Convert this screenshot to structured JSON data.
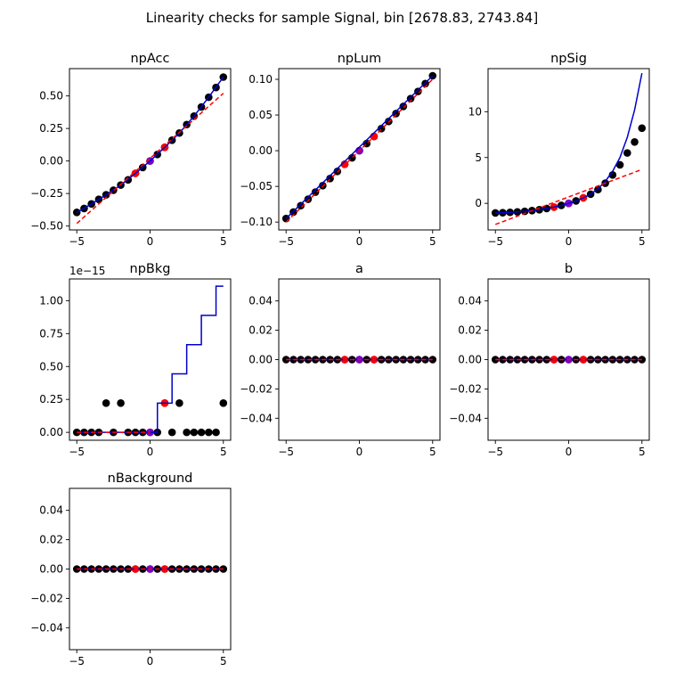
{
  "suptitle": "Linearity checks for sample Signal, bin [2678.83, 2743.84]",
  "colors": {
    "points": "#000000",
    "fit": "#0000cc",
    "linear": "#ff0000",
    "highlight_red": "#ff0000",
    "highlight_purple": "#7a00cc"
  },
  "chart_data": [
    {
      "type": "scatter",
      "title": "npAcc",
      "xlim": [
        -5.5,
        5.5
      ],
      "ylim": [
        -0.53,
        0.71
      ],
      "xticks": [
        -5,
        0,
        5
      ],
      "xtick_labels": [
        "−5",
        "0",
        "5"
      ],
      "yticks": [
        -0.5,
        -0.25,
        0,
        0.25,
        0.5
      ],
      "ytick_labels": [
        "−0.50",
        "−0.25",
        "0.00",
        "0.25",
        "0.50"
      ],
      "offset_label": "",
      "points_x": [
        -5,
        -4.5,
        -4,
        -3.5,
        -3,
        -2.5,
        -2,
        -1.5,
        -1,
        -0.5,
        0,
        0.5,
        1,
        1.5,
        2,
        2.5,
        3,
        3.5,
        4,
        4.5,
        5
      ],
      "points_y": [
        -0.395,
        -0.365,
        -0.33,
        -0.295,
        -0.26,
        -0.225,
        -0.185,
        -0.145,
        -0.095,
        -0.05,
        0.0,
        0.05,
        0.105,
        0.16,
        0.215,
        0.28,
        0.345,
        0.415,
        0.49,
        0.565,
        0.645
      ],
      "fit_curve": {
        "x": [
          -5,
          -4,
          -3,
          -2,
          -1,
          0,
          1,
          2,
          3,
          4,
          5
        ],
        "y": [
          -0.395,
          -0.33,
          -0.26,
          -0.185,
          -0.095,
          0.0,
          0.105,
          0.215,
          0.345,
          0.49,
          0.645
        ]
      },
      "linear_line": {
        "x": [
          -5,
          5
        ],
        "y": [
          -0.48,
          0.52
        ]
      },
      "red_points": [
        [
          -1,
          -0.095
        ],
        [
          1,
          0.105
        ]
      ],
      "purple_point": [
        0,
        0.0
      ]
    },
    {
      "type": "scatter",
      "title": "npLum",
      "xlim": [
        -5.5,
        5.5
      ],
      "ylim": [
        -0.111,
        0.115
      ],
      "xticks": [
        -5,
        0,
        5
      ],
      "xtick_labels": [
        "−5",
        "0",
        "5"
      ],
      "yticks": [
        -0.1,
        -0.05,
        0,
        0.05,
        0.1
      ],
      "ytick_labels": [
        "−0.10",
        "−0.05",
        "0.00",
        "0.05",
        "0.10"
      ],
      "offset_label": "",
      "points_x": [
        -5,
        -4.5,
        -4,
        -3.5,
        -3,
        -2.5,
        -2,
        -1.5,
        -1,
        -0.5,
        0,
        0.5,
        1,
        1.5,
        2,
        2.5,
        3,
        3.5,
        4,
        4.5,
        5
      ],
      "points_y": [
        -0.095,
        -0.086,
        -0.077,
        -0.068,
        -0.058,
        -0.049,
        -0.039,
        -0.029,
        -0.019,
        -0.01,
        0.0,
        0.01,
        0.02,
        0.031,
        0.041,
        0.052,
        0.062,
        0.073,
        0.083,
        0.094,
        0.105
      ],
      "fit_curve": {
        "x": [
          -5,
          5
        ],
        "y": [
          -0.095,
          0.105
        ]
      },
      "linear_line": {
        "x": [
          -5,
          5
        ],
        "y": [
          -0.1,
          0.1
        ]
      },
      "red_points": [
        [
          -1,
          -0.019
        ],
        [
          1,
          0.02
        ]
      ],
      "purple_point": [
        0,
        0.0
      ]
    },
    {
      "type": "scatter",
      "title": "npSig",
      "xlim": [
        -5.5,
        5.5
      ],
      "ylim": [
        -2.9,
        14.7
      ],
      "xticks": [
        -5,
        0,
        5
      ],
      "xtick_labels": [
        "−5",
        "0",
        "5"
      ],
      "yticks": [
        0,
        5,
        10
      ],
      "ytick_labels": [
        "0",
        "5",
        "10"
      ],
      "offset_label": "",
      "points_x": [
        -5,
        -4.5,
        -4,
        -3.5,
        -3,
        -2.5,
        -2,
        -1.5,
        -1,
        -0.5,
        0,
        0.5,
        1,
        1.5,
        2,
        2.5,
        3,
        3.5,
        4,
        4.5,
        5
      ],
      "points_y": [
        -1.05,
        -1.02,
        -0.98,
        -0.93,
        -0.87,
        -0.79,
        -0.69,
        -0.56,
        -0.41,
        -0.22,
        0.0,
        0.27,
        0.6,
        1.0,
        1.5,
        2.2,
        3.1,
        4.2,
        5.5,
        6.7,
        8.2
      ],
      "fit_curve": {
        "x": [
          -5,
          -4.5,
          -4,
          -3.5,
          -3,
          -2.5,
          -2,
          -1.5,
          -1,
          -0.5,
          0,
          0.5,
          1,
          1.5,
          2,
          2.5,
          3,
          3.5,
          4,
          4.5,
          5
        ],
        "y": [
          -1.05,
          -1.02,
          -0.98,
          -0.93,
          -0.87,
          -0.79,
          -0.69,
          -0.56,
          -0.41,
          -0.22,
          0.0,
          0.27,
          0.6,
          1.0,
          1.6,
          2.4,
          3.5,
          5.0,
          7.2,
          10.2,
          14.2
        ]
      },
      "linear_line": {
        "x": [
          -5,
          5
        ],
        "y": [
          -2.3,
          3.7
        ]
      },
      "red_points": [
        [
          -1,
          -0.41
        ],
        [
          1,
          0.6
        ]
      ],
      "purple_point": [
        0,
        0.0
      ]
    },
    {
      "type": "scatter",
      "title": "npBkg",
      "xlim": [
        -5.5,
        5.5
      ],
      "ylim": [
        -0.06,
        1.165
      ],
      "xticks": [
        -5,
        0,
        5
      ],
      "xtick_labels": [
        "−5",
        "0",
        "5"
      ],
      "yticks": [
        0,
        0.25,
        0.5,
        0.75,
        1.0
      ],
      "ytick_labels": [
        "0.00",
        "0.25",
        "0.50",
        "0.75",
        "1.00"
      ],
      "offset_label": "1e−15",
      "points_x": [
        -5,
        -4.5,
        -4,
        -3.5,
        -3,
        -2.5,
        -2,
        -1.5,
        -1,
        -0.5,
        0,
        0.5,
        1,
        1.5,
        2,
        2.5,
        3,
        3.5,
        4,
        4.5,
        5
      ],
      "points_y": [
        0,
        0,
        0,
        0,
        0.222,
        0,
        0.222,
        0,
        0,
        0,
        0,
        0,
        0.222,
        0,
        0.222,
        0,
        0,
        0,
        0,
        0,
        0.222
      ],
      "fit_curve": {
        "x": [
          -5,
          0.5,
          0.5,
          1.5,
          1.5,
          2.5,
          2.5,
          3.5,
          3.5,
          4.5,
          4.5,
          5
        ],
        "y": [
          0,
          0,
          0.222,
          0.222,
          0.444,
          0.444,
          0.666,
          0.666,
          0.888,
          0.888,
          1.11,
          1.11
        ]
      },
      "linear_line": {
        "x": [
          -5,
          0
        ],
        "y": [
          0,
          0
        ]
      },
      "red_points": [
        [
          1,
          0.222
        ]
      ],
      "purple_point": [
        0,
        0.0
      ]
    },
    {
      "type": "scatter",
      "title": "a",
      "xlim": [
        -5.5,
        5.5
      ],
      "ylim": [
        -0.055,
        0.055
      ],
      "xticks": [
        -5,
        0,
        5
      ],
      "xtick_labels": [
        "−5",
        "0",
        "5"
      ],
      "yticks": [
        -0.04,
        -0.02,
        0,
        0.02,
        0.04
      ],
      "ytick_labels": [
        "−0.04",
        "−0.02",
        "0.00",
        "0.02",
        "0.04"
      ],
      "offset_label": "",
      "points_x": [
        -5,
        -4.5,
        -4,
        -3.5,
        -3,
        -2.5,
        -2,
        -1.5,
        -1,
        -0.5,
        0,
        0.5,
        1,
        1.5,
        2,
        2.5,
        3,
        3.5,
        4,
        4.5,
        5
      ],
      "points_y": [
        0,
        0,
        0,
        0,
        0,
        0,
        0,
        0,
        0,
        0,
        0,
        0,
        0,
        0,
        0,
        0,
        0,
        0,
        0,
        0,
        0
      ],
      "fit_curve": {
        "x": [
          -5,
          5
        ],
        "y": [
          0,
          0
        ]
      },
      "linear_line": {
        "x": [
          -5,
          5
        ],
        "y": [
          0,
          0
        ]
      },
      "red_points": [
        [
          -1,
          0
        ],
        [
          1,
          0
        ]
      ],
      "purple_point": [
        0,
        0
      ]
    },
    {
      "type": "scatter",
      "title": "b",
      "xlim": [
        -5.5,
        5.5
      ],
      "ylim": [
        -0.055,
        0.055
      ],
      "xticks": [
        -5,
        0,
        5
      ],
      "xtick_labels": [
        "−5",
        "0",
        "5"
      ],
      "yticks": [
        -0.04,
        -0.02,
        0,
        0.02,
        0.04
      ],
      "ytick_labels": [
        "−0.04",
        "−0.02",
        "0.00",
        "0.02",
        "0.04"
      ],
      "offset_label": "",
      "points_x": [
        -5,
        -4.5,
        -4,
        -3.5,
        -3,
        -2.5,
        -2,
        -1.5,
        -1,
        -0.5,
        0,
        0.5,
        1,
        1.5,
        2,
        2.5,
        3,
        3.5,
        4,
        4.5,
        5
      ],
      "points_y": [
        0,
        0,
        0,
        0,
        0,
        0,
        0,
        0,
        0,
        0,
        0,
        0,
        0,
        0,
        0,
        0,
        0,
        0,
        0,
        0,
        0
      ],
      "fit_curve": {
        "x": [
          -5,
          5
        ],
        "y": [
          0,
          0
        ]
      },
      "linear_line": {
        "x": [
          -5,
          5
        ],
        "y": [
          0,
          0
        ]
      },
      "red_points": [
        [
          -1,
          0
        ],
        [
          1,
          0
        ]
      ],
      "purple_point": [
        0,
        0
      ]
    },
    {
      "type": "scatter",
      "title": "nBackground",
      "xlim": [
        -5.5,
        5.5
      ],
      "ylim": [
        -0.055,
        0.055
      ],
      "xticks": [
        -5,
        0,
        5
      ],
      "xtick_labels": [
        "−5",
        "0",
        "5"
      ],
      "yticks": [
        -0.04,
        -0.02,
        0,
        0.02,
        0.04
      ],
      "ytick_labels": [
        "−0.04",
        "−0.02",
        "0.00",
        "0.02",
        "0.04"
      ],
      "offset_label": "",
      "points_x": [
        -5,
        -4.5,
        -4,
        -3.5,
        -3,
        -2.5,
        -2,
        -1.5,
        -1,
        -0.5,
        0,
        0.5,
        1,
        1.5,
        2,
        2.5,
        3,
        3.5,
        4,
        4.5,
        5
      ],
      "points_y": [
        0,
        0,
        0,
        0,
        0,
        0,
        0,
        0,
        0,
        0,
        0,
        0,
        0,
        0,
        0,
        0,
        0,
        0,
        0,
        0,
        0
      ],
      "fit_curve": {
        "x": [
          -5,
          5
        ],
        "y": [
          0,
          0
        ]
      },
      "linear_line": {
        "x": [
          -5,
          5
        ],
        "y": [
          0,
          0
        ]
      },
      "red_points": [
        [
          -1,
          0
        ],
        [
          1,
          0
        ]
      ],
      "purple_point": [
        0,
        0
      ]
    }
  ]
}
